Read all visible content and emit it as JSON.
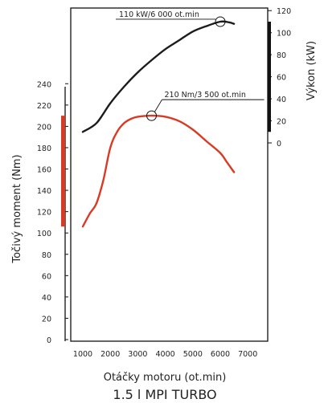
{
  "chart_data": {
    "type": "line",
    "title": "1.5 l MPI TURBO",
    "xlabel": "Otáčky motoru (ot.min)",
    "xlim": [
      0,
      7300
    ],
    "x_ticks": [
      1000,
      2000,
      3000,
      4000,
      5000,
      6000,
      7000
    ],
    "y_left": {
      "label": "Točivý moment (Nm)",
      "range": [
        0,
        240
      ],
      "ticks": [
        0,
        20,
        40,
        60,
        80,
        100,
        120,
        140,
        160,
        180,
        200,
        220,
        240
      ]
    },
    "y_right": {
      "label": "Výkon (kW)",
      "range": [
        0,
        120
      ],
      "ticks": [
        0,
        20,
        40,
        60,
        80,
        100,
        120
      ]
    },
    "series": [
      {
        "axis": "right",
        "color": "#1c1c1c",
        "points": [
          [
            1000,
            10
          ],
          [
            1500,
            18
          ],
          [
            2000,
            36
          ],
          [
            2500,
            51
          ],
          [
            3000,
            64
          ],
          [
            3500,
            75
          ],
          [
            4000,
            85
          ],
          [
            4500,
            93
          ],
          [
            5000,
            101
          ],
          [
            5500,
            106
          ],
          [
            6000,
            110
          ],
          [
            6300,
            109.5
          ],
          [
            6500,
            108
          ]
        ]
      },
      {
        "axis": "left",
        "color": "#d93a24",
        "points": [
          [
            1000,
            106
          ],
          [
            1250,
            118
          ],
          [
            1500,
            128
          ],
          [
            1750,
            150
          ],
          [
            2000,
            180
          ],
          [
            2250,
            195
          ],
          [
            2500,
            203
          ],
          [
            2750,
            207
          ],
          [
            3000,
            209
          ],
          [
            3500,
            210
          ],
          [
            4000,
            209
          ],
          [
            4500,
            205
          ],
          [
            5000,
            197
          ],
          [
            5500,
            186
          ],
          [
            6000,
            175
          ],
          [
            6250,
            166
          ],
          [
            6500,
            157
          ]
        ]
      }
    ],
    "annotations": [
      {
        "text": "110 kW/6 000 ot.min",
        "x": 6000,
        "y": 110,
        "axis": "right"
      },
      {
        "text": "210 Nm/3 500 ot.min",
        "x": 3500,
        "y": 210,
        "axis": "left"
      }
    ],
    "range_bars": [
      {
        "axis": "left",
        "from": 106,
        "to": 210,
        "color": "#d93a24"
      },
      {
        "axis": "right",
        "from": 10,
        "to": 110,
        "color": "#111111"
      }
    ]
  }
}
